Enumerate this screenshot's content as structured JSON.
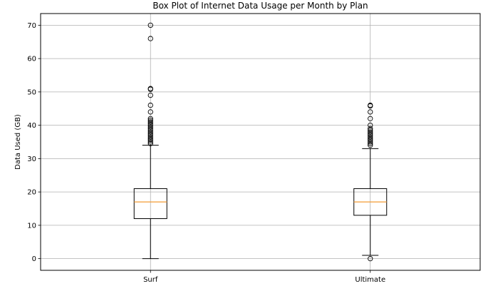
{
  "chart_data": {
    "type": "boxplot",
    "title": "Box Plot of Internet Data Usage per Month by Plan",
    "xlabel": "",
    "ylabel": "Data Used (GB)",
    "ylim": [
      -3.5,
      73.5
    ],
    "yticks": [
      0,
      10,
      20,
      30,
      40,
      50,
      60,
      70
    ],
    "grid": true,
    "categories": [
      "Surf",
      "Ultimate"
    ],
    "boxes": [
      {
        "name": "Surf",
        "whisker_low": 0,
        "q1": 12,
        "median": 17,
        "q3": 21,
        "whisker_high": 34,
        "outliers": [
          34.5,
          35,
          35.5,
          36,
          36.5,
          37,
          37.5,
          38,
          38.5,
          39,
          39.5,
          40,
          40.5,
          41,
          41.5,
          42,
          44,
          46,
          49,
          50.8,
          51,
          66,
          70
        ]
      },
      {
        "name": "Ultimate",
        "whisker_low": 1,
        "q1": 13,
        "median": 17,
        "q3": 21,
        "whisker_high": 33,
        "outliers": [
          0,
          34,
          34.5,
          35,
          35.5,
          36,
          36.5,
          37,
          37.5,
          38,
          38.5,
          39,
          40,
          42,
          44,
          45.8,
          46
        ]
      }
    ],
    "colors": {
      "box": "#000000",
      "median": "#f39c34",
      "grid": "#b0b0b0",
      "axes": "#000000"
    }
  }
}
